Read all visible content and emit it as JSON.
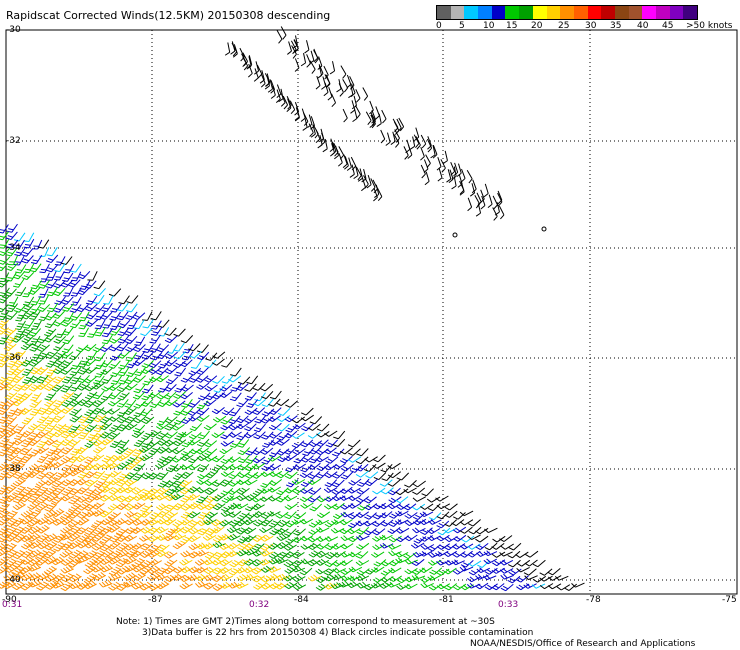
{
  "title": "Rapidscat Corrected Winds(12.5KM) 20150308 descending",
  "legend": {
    "colors": [
      "#606060",
      "#b4b4b4",
      "#00c8ff",
      "#0080ff",
      "#0000c8",
      "#00c800",
      "#00a000",
      "#ffff00",
      "#ffd000",
      "#ff9000",
      "#ff6000",
      "#ff0000",
      "#c00000",
      "#8b4513",
      "#a0522d",
      "#ff00ff",
      "#c000c0",
      "#8000c0",
      "#400080"
    ],
    "labels": [
      "0",
      "5",
      "10",
      "15",
      "20",
      "25",
      "30",
      "35",
      "40",
      "45",
      ">50 knots"
    ]
  },
  "lat_labels": [
    "-30",
    "-32",
    "-34",
    "-36",
    "-38",
    "-40"
  ],
  "lon_labels": [
    "-90",
    "-87",
    "-84",
    "-81",
    "-78",
    "-75"
  ],
  "time_labels": [
    "0:31",
    "0:32",
    "0:33"
  ],
  "notes": [
    "Note: 1) Times are GMT 2)Times along bottom correspond to measurement at ~30S",
    "3)Data buffer is 22 hrs from 20150308 4) Black circles indicate possible contamination",
    "NOAA/NESDIS/Office of Research and Applications"
  ],
  "contamination_markers": 2
}
